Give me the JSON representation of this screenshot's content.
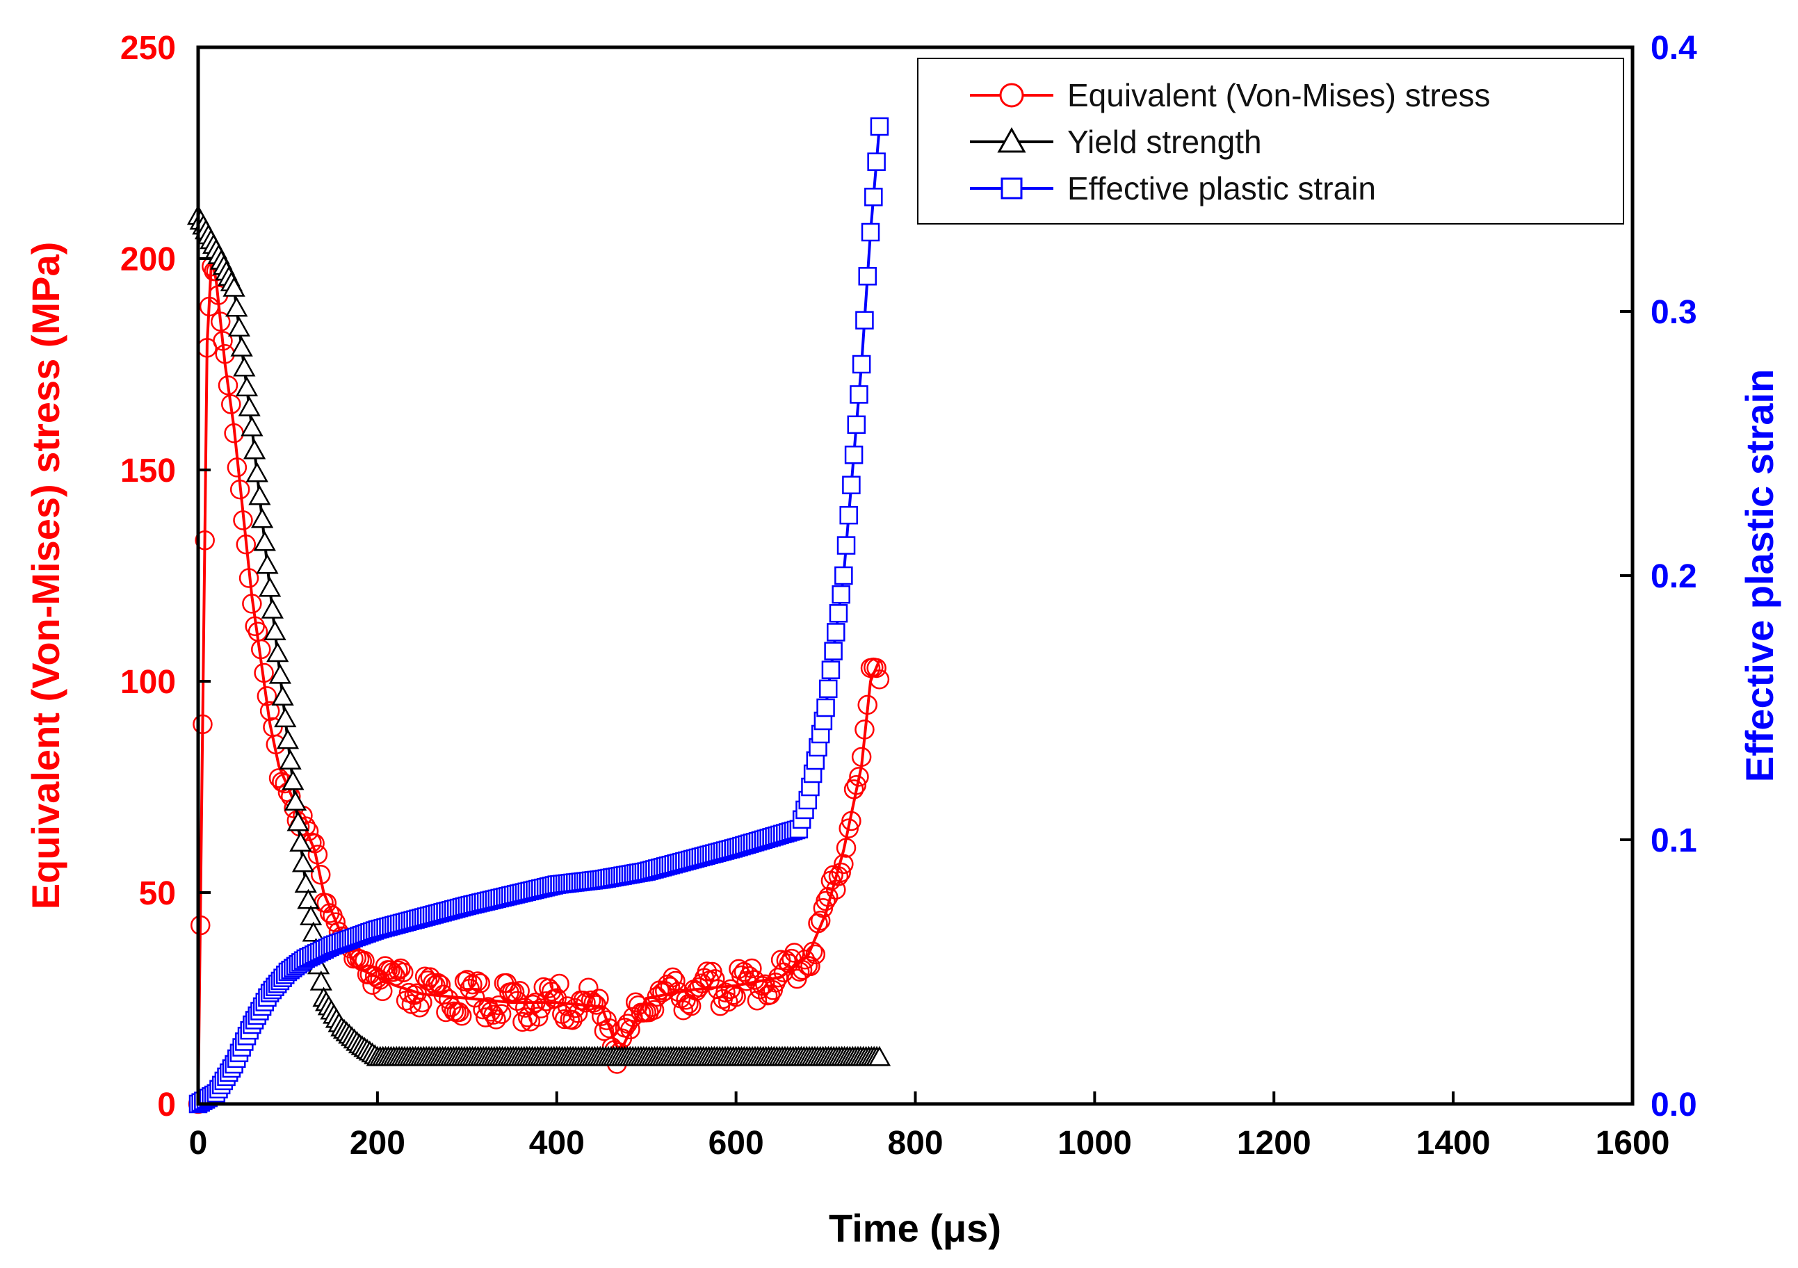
{
  "chart_data": {
    "type": "line",
    "title": "",
    "xlabel": "Time (μs)",
    "ylabel_left": "Equivalent (Von-Mises) stress (MPa)",
    "ylabel_right": "Effective plastic strain",
    "xlim": [
      0,
      1600
    ],
    "xticks": [
      "0",
      "200",
      "400",
      "600",
      "800",
      "1000",
      "1200",
      "1400",
      "1600"
    ],
    "ylim_left": [
      0,
      250
    ],
    "yticks_left": [
      "0",
      "50",
      "100",
      "150",
      "200",
      "250"
    ],
    "ylim_right": [
      0,
      0.4
    ],
    "yticks_right": [
      "0.0",
      "0.1",
      "0.2",
      "0.3",
      "0.4"
    ],
    "grid": false,
    "legend_position": "top-right",
    "colors": {
      "stress": "#ff0000",
      "yield": "#000000",
      "strain": "#0000ff",
      "axis": "#000000"
    },
    "series": [
      {
        "name": "Equivalent (Von-Mises) stress",
        "axis": "left",
        "color": "#ff0000",
        "marker": "circle",
        "x": [
          0,
          5,
          10,
          15,
          20,
          25,
          30,
          40,
          50,
          60,
          70,
          80,
          90,
          100,
          110,
          120,
          130,
          140,
          150,
          160,
          170,
          180,
          200,
          220,
          250,
          300,
          350,
          400,
          450,
          470,
          500,
          550,
          600,
          650,
          680,
          700,
          720,
          740,
          750,
          760
        ],
        "y": [
          0,
          90,
          180,
          200,
          195,
          185,
          175,
          160,
          140,
          120,
          105,
          90,
          80,
          75,
          70,
          65,
          60,
          50,
          45,
          40,
          35,
          32,
          30,
          28,
          26,
          25,
          24,
          24,
          23,
          12,
          25,
          27,
          28,
          30,
          35,
          45,
          60,
          80,
          100,
          105
        ]
      },
      {
        "name": "Yield strength",
        "axis": "left",
        "color": "#000000",
        "marker": "triangle",
        "x": [
          0,
          20,
          40,
          60,
          80,
          100,
          120,
          140,
          160,
          180,
          200,
          300,
          400,
          500,
          600,
          700,
          760
        ],
        "y": [
          210,
          202,
          193,
          160,
          122,
          86,
          52,
          25,
          18,
          14,
          11,
          11,
          11,
          11,
          11,
          11,
          11
        ]
      },
      {
        "name": "Effective plastic strain",
        "axis": "right",
        "color": "#0000ff",
        "marker": "square",
        "x": [
          0,
          20,
          40,
          60,
          80,
          100,
          120,
          150,
          200,
          300,
          400,
          450,
          500,
          600,
          670,
          680,
          700,
          720,
          740,
          750,
          760
        ],
        "y": [
          0,
          0.004,
          0.015,
          0.03,
          0.042,
          0.05,
          0.055,
          0.06,
          0.066,
          0.075,
          0.083,
          0.085,
          0.088,
          0.097,
          0.104,
          0.115,
          0.15,
          0.2,
          0.28,
          0.33,
          0.37
        ]
      }
    ]
  }
}
